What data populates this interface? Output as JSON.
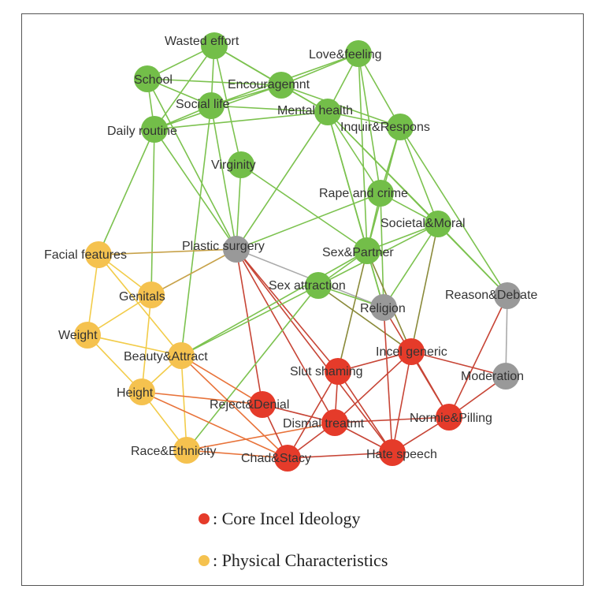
{
  "colors": {
    "green": "#73be49",
    "gray": "#999999",
    "yellow": "#f5c24f",
    "red": "#e53b2a",
    "edge_green": "#7cc24f",
    "edge_red": "#c74536",
    "edge_orange": "#e8733a",
    "edge_yellow": "#f2cc4a",
    "edge_gray": "#aaaaaa",
    "edge_olive": "#8a8a3a",
    "edge_gold": "#c7a24a"
  },
  "nodes": [
    {
      "id": "wasted",
      "label": "Wasted effort",
      "group": "green"
    },
    {
      "id": "love",
      "label": "Love&feeling",
      "group": "green"
    },
    {
      "id": "school",
      "label": "School",
      "group": "green"
    },
    {
      "id": "encour",
      "label": "Encouragemnt",
      "group": "green"
    },
    {
      "id": "social",
      "label": "Social life",
      "group": "green"
    },
    {
      "id": "mental",
      "label": "Mental health",
      "group": "green"
    },
    {
      "id": "inquir",
      "label": "Inquir&Respons",
      "group": "green"
    },
    {
      "id": "daily",
      "label": "Daily routine",
      "group": "green"
    },
    {
      "id": "virgin",
      "label": "Virginity",
      "group": "green"
    },
    {
      "id": "rape",
      "label": "Rape and crime",
      "group": "green"
    },
    {
      "id": "societal",
      "label": "Societal&Moral",
      "group": "green"
    },
    {
      "id": "plastic",
      "label": "Plastic surgery",
      "group": "gray"
    },
    {
      "id": "facial",
      "label": "Facial features",
      "group": "yellow"
    },
    {
      "id": "sexpart",
      "label": "Sex&Partner",
      "group": "green"
    },
    {
      "id": "sexattr",
      "label": "Sex attraction",
      "group": "green"
    },
    {
      "id": "genitals",
      "label": "Genitals",
      "group": "yellow"
    },
    {
      "id": "religion",
      "label": "Religion",
      "group": "gray"
    },
    {
      "id": "reason",
      "label": "Reason&Debate",
      "group": "gray"
    },
    {
      "id": "weight",
      "label": "Weight",
      "group": "yellow"
    },
    {
      "id": "incel",
      "label": "Incel generic",
      "group": "red"
    },
    {
      "id": "beauty",
      "label": "Beauty&Attract",
      "group": "yellow"
    },
    {
      "id": "slut",
      "label": "Slut shaming",
      "group": "red"
    },
    {
      "id": "moder",
      "label": "Moderation",
      "group": "gray"
    },
    {
      "id": "height",
      "label": "Height",
      "group": "yellow"
    },
    {
      "id": "reject",
      "label": "Reject&Denial",
      "group": "red"
    },
    {
      "id": "dismal",
      "label": "Dismal treatmt",
      "group": "red"
    },
    {
      "id": "normie",
      "label": "Normie&Pilling",
      "group": "red"
    },
    {
      "id": "race",
      "label": "Race&Ethnicity",
      "group": "yellow"
    },
    {
      "id": "hate",
      "label": "Hate speech",
      "group": "red"
    },
    {
      "id": "chad",
      "label": "Chad&Stacy",
      "group": "red"
    }
  ],
  "edges": [
    [
      "wasted",
      "school",
      "edge_green"
    ],
    [
      "wasted",
      "social",
      "edge_green"
    ],
    [
      "wasted",
      "daily",
      "edge_green"
    ],
    [
      "wasted",
      "encour",
      "edge_green"
    ],
    [
      "wasted",
      "virgin",
      "edge_green"
    ],
    [
      "wasted",
      "mental",
      "edge_green"
    ],
    [
      "school",
      "social",
      "edge_green"
    ],
    [
      "school",
      "daily",
      "edge_green"
    ],
    [
      "school",
      "encour",
      "edge_green"
    ],
    [
      "school",
      "plastic",
      "edge_green"
    ],
    [
      "love",
      "encour",
      "edge_green"
    ],
    [
      "love",
      "mental",
      "edge_green"
    ],
    [
      "love",
      "social",
      "edge_green"
    ],
    [
      "love",
      "inquir",
      "edge_green"
    ],
    [
      "love",
      "sexpart",
      "edge_green"
    ],
    [
      "love",
      "rape",
      "edge_green"
    ],
    [
      "encour",
      "mental",
      "edge_green"
    ],
    [
      "encour",
      "social",
      "edge_green"
    ],
    [
      "encour",
      "inquir",
      "edge_green"
    ],
    [
      "encour",
      "daily",
      "edge_green"
    ],
    [
      "social",
      "mental",
      "edge_green"
    ],
    [
      "social",
      "daily",
      "edge_green"
    ],
    [
      "social",
      "plastic",
      "edge_green"
    ],
    [
      "social",
      "beauty",
      "edge_green"
    ],
    [
      "mental",
      "inquir",
      "edge_green"
    ],
    [
      "mental",
      "daily",
      "edge_green"
    ],
    [
      "mental",
      "plastic",
      "edge_green"
    ],
    [
      "mental",
      "sexpart",
      "edge_green"
    ],
    [
      "mental",
      "societal",
      "edge_green"
    ],
    [
      "mental",
      "rape",
      "edge_green"
    ],
    [
      "mental",
      "religion",
      "edge_green"
    ],
    [
      "mental",
      "reason",
      "edge_green"
    ],
    [
      "inquir",
      "societal",
      "edge_green"
    ],
    [
      "inquir",
      "rape",
      "edge_green"
    ],
    [
      "inquir",
      "reason",
      "edge_green"
    ],
    [
      "inquir",
      "sexpart",
      "edge_green"
    ],
    [
      "daily",
      "plastic",
      "edge_green"
    ],
    [
      "daily",
      "facial",
      "edge_green"
    ],
    [
      "daily",
      "genitals",
      "edge_green"
    ],
    [
      "virgin",
      "plastic",
      "edge_green"
    ],
    [
      "virgin",
      "sexpart",
      "edge_green"
    ],
    [
      "rape",
      "plastic",
      "edge_green"
    ],
    [
      "rape",
      "societal",
      "edge_green"
    ],
    [
      "rape",
      "sexpart",
      "edge_green"
    ],
    [
      "rape",
      "religion",
      "edge_green"
    ],
    [
      "societal",
      "sexpart",
      "edge_green"
    ],
    [
      "societal",
      "sexattr",
      "edge_green"
    ],
    [
      "societal",
      "reason",
      "edge_green"
    ],
    [
      "societal",
      "religion",
      "edge_green"
    ],
    [
      "societal",
      "incel",
      "edge_olive"
    ],
    [
      "plastic",
      "facial",
      "edge_gold"
    ],
    [
      "plastic",
      "genitals",
      "edge_gold"
    ],
    [
      "plastic",
      "religion",
      "edge_gray"
    ],
    [
      "plastic",
      "slut",
      "edge_red"
    ],
    [
      "plastic",
      "reject",
      "edge_red"
    ],
    [
      "plastic",
      "dismal",
      "edge_red"
    ],
    [
      "plastic",
      "hate",
      "edge_red"
    ],
    [
      "sexpart",
      "sexattr",
      "edge_green"
    ],
    [
      "sexpart",
      "slut",
      "edge_olive"
    ],
    [
      "sexpart",
      "religion",
      "edge_green"
    ],
    [
      "sexpart",
      "incel",
      "edge_olive"
    ],
    [
      "sexpart",
      "beauty",
      "edge_green"
    ],
    [
      "sexattr",
      "beauty",
      "edge_green"
    ],
    [
      "sexattr",
      "race",
      "edge_green"
    ],
    [
      "sexattr",
      "incel",
      "edge_olive"
    ],
    [
      "sexattr",
      "religion",
      "edge_green"
    ],
    [
      "facial",
      "genitals",
      "edge_yellow"
    ],
    [
      "facial",
      "weight",
      "edge_yellow"
    ],
    [
      "facial",
      "beauty",
      "edge_yellow"
    ],
    [
      "genitals",
      "weight",
      "edge_yellow"
    ],
    [
      "genitals",
      "height",
      "edge_yellow"
    ],
    [
      "weight",
      "beauty",
      "edge_yellow"
    ],
    [
      "weight",
      "height",
      "edge_yellow"
    ],
    [
      "beauty",
      "height",
      "edge_yellow"
    ],
    [
      "beauty",
      "race",
      "edge_yellow"
    ],
    [
      "beauty",
      "reject",
      "edge_orange"
    ],
    [
      "beauty",
      "chad",
      "edge_orange"
    ],
    [
      "height",
      "race",
      "edge_yellow"
    ],
    [
      "height",
      "chad",
      "edge_orange"
    ],
    [
      "height",
      "reject",
      "edge_orange"
    ],
    [
      "race",
      "chad",
      "edge_orange"
    ],
    [
      "race",
      "dismal",
      "edge_orange"
    ],
    [
      "reject",
      "dismal",
      "edge_red"
    ],
    [
      "reject",
      "chad",
      "edge_red"
    ],
    [
      "slut",
      "dismal",
      "edge_red"
    ],
    [
      "slut",
      "chad",
      "edge_red"
    ],
    [
      "slut",
      "hate",
      "edge_red"
    ],
    [
      "slut",
      "incel",
      "edge_red"
    ],
    [
      "incel",
      "normie",
      "edge_red"
    ],
    [
      "incel",
      "moder",
      "edge_red"
    ],
    [
      "incel",
      "hate",
      "edge_red"
    ],
    [
      "incel",
      "dismal",
      "edge_red"
    ],
    [
      "religion",
      "normie",
      "edge_red"
    ],
    [
      "religion",
      "hate",
      "edge_red"
    ],
    [
      "reason",
      "moder",
      "edge_gray"
    ],
    [
      "reason",
      "normie",
      "edge_red"
    ],
    [
      "moder",
      "normie",
      "edge_red"
    ],
    [
      "dismal",
      "normie",
      "edge_red"
    ],
    [
      "dismal",
      "hate",
      "edge_red"
    ],
    [
      "dismal",
      "chad",
      "edge_red"
    ],
    [
      "normie",
      "hate",
      "edge_red"
    ],
    [
      "chad",
      "hate",
      "edge_red"
    ]
  ],
  "legend": [
    {
      "label": ": Core Incel Ideology",
      "color": "#e53b2a"
    },
    {
      "label": ": Physical Characteristics",
      "color": "#f5c24f"
    }
  ]
}
